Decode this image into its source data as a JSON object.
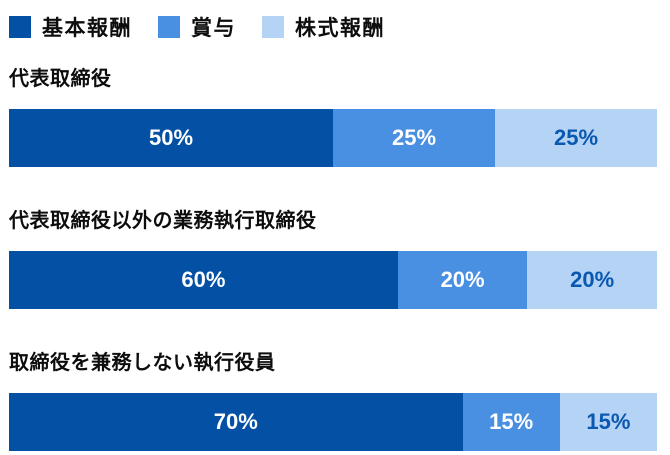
{
  "chart_data": {
    "type": "bar",
    "stacked": true,
    "orientation": "horizontal",
    "legend_position": "top",
    "xlim": [
      0,
      100
    ],
    "grid": false,
    "legend": [
      {
        "label": "基本報酬",
        "color": "#0450a4"
      },
      {
        "label": "賞与",
        "color": "#4a90e2"
      },
      {
        "label": "株式報酬",
        "color": "#b5d3f5"
      }
    ],
    "value_label_colors": {
      "on_dark_segment": "#ffffff",
      "on_light_segment": "#0a58b0"
    },
    "bars": [
      {
        "category": "代表取締役",
        "values": [
          50,
          25,
          25
        ],
        "value_labels": [
          "50%",
          "25%",
          "25%"
        ]
      },
      {
        "category": "代表取締役以外の業務執行取締役",
        "values": [
          60,
          20,
          20
        ],
        "value_labels": [
          "60%",
          "20%",
          "20%"
        ]
      },
      {
        "category": "取締役を兼務しない執行役員",
        "values": [
          70,
          15,
          15
        ],
        "value_labels": [
          "70%",
          "15%",
          "15%"
        ]
      }
    ]
  }
}
